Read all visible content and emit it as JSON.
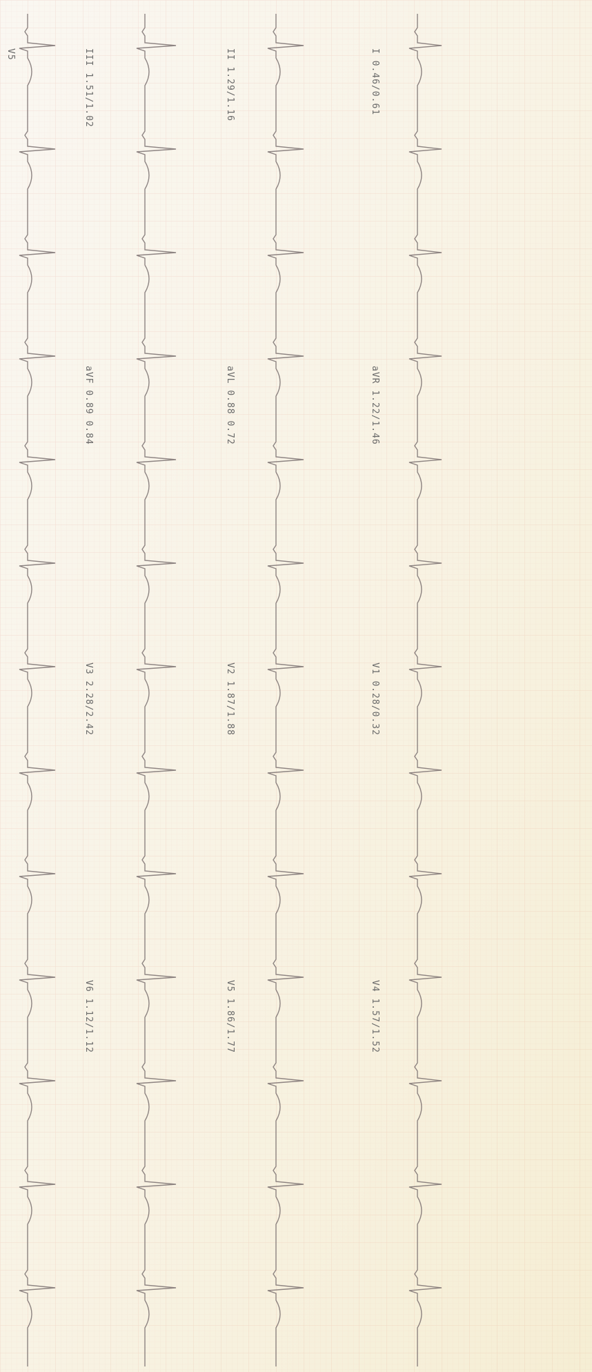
{
  "rhythm_label": "V5",
  "columns": [
    {
      "labels": [
        "III 1.51/1.02",
        "aVF 0.89 0.84",
        "V3 2.28/2.42",
        "V6 1.12/1.12"
      ]
    },
    {
      "labels": [
        "II 1.29/1.16",
        "aVL 0.88 0.72",
        "V2 1.87/1.88",
        "V5 1.86/1.77"
      ]
    },
    {
      "labels": [
        "I 0.46/0.61",
        "aVR 1.22/1.46",
        "V1 0.28/0.32",
        "V4 1.57/1.52"
      ]
    }
  ]
}
